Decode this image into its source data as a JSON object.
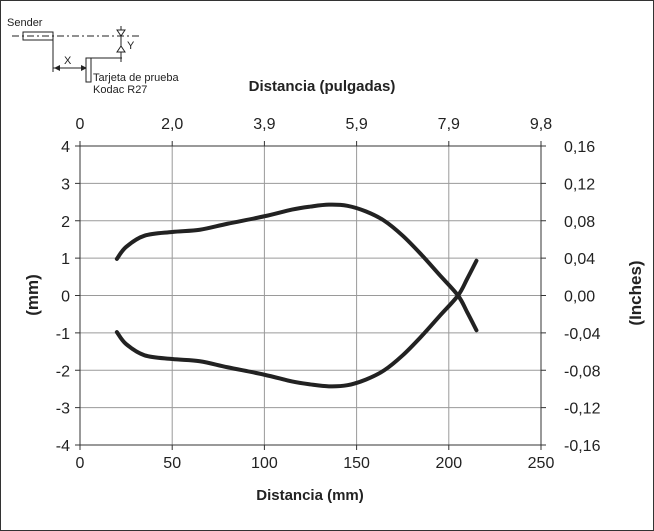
{
  "diagram": {
    "sender_label": "Sender",
    "x_label": "X",
    "y_label": "Y",
    "target_label_line1": "Tarjeta de prueba",
    "target_label_line2": "Kodac R27"
  },
  "chart_data": {
    "type": "line",
    "title": "",
    "xlabel": "Distancia (mm)",
    "ylabel": "(mm)",
    "x2label": "Distancia (pulgadas)",
    "y2label": "(Inches)",
    "xlim": [
      0,
      250
    ],
    "ylim": [
      -4,
      4
    ],
    "x_ticks": [
      0,
      50,
      100,
      150,
      200,
      250
    ],
    "x_tick_labels": [
      "0",
      "50",
      "100",
      "150",
      "200",
      "250"
    ],
    "y_ticks": [
      -4,
      -3,
      -2,
      -1,
      0,
      1,
      2,
      3,
      4
    ],
    "y_tick_labels": [
      "-4",
      "-3",
      "-2",
      "-1",
      "0",
      "1",
      "2",
      "3",
      "4"
    ],
    "x2_tick_labels": [
      "0",
      "2,0",
      "3,9",
      "5,9",
      "7,9",
      "9,8"
    ],
    "y2_tick_labels": [
      "-0,16",
      "-0,12",
      "-0,08",
      "-0,04",
      "0,00",
      "0,04",
      "0,08",
      "0,12",
      "0,16"
    ],
    "grid": true,
    "line_color": "#222222",
    "series": [
      {
        "points": [
          [
            20,
            0.98
          ],
          [
            25,
            1.3
          ],
          [
            35,
            1.6
          ],
          [
            50,
            1.7
          ],
          [
            65,
            1.76
          ],
          [
            80,
            1.92
          ],
          [
            100,
            2.12
          ],
          [
            115,
            2.3
          ],
          [
            125,
            2.38
          ],
          [
            135,
            2.43
          ],
          [
            145,
            2.4
          ],
          [
            155,
            2.25
          ],
          [
            165,
            2.0
          ],
          [
            175,
            1.6
          ],
          [
            185,
            1.1
          ],
          [
            195,
            0.55
          ],
          [
            205,
            0.0
          ],
          [
            210,
            -0.45
          ],
          [
            215,
            -0.93
          ]
        ]
      },
      {
        "points": [
          [
            20,
            -0.98
          ],
          [
            25,
            -1.3
          ],
          [
            35,
            -1.6
          ],
          [
            50,
            -1.7
          ],
          [
            65,
            -1.76
          ],
          [
            80,
            -1.92
          ],
          [
            100,
            -2.12
          ],
          [
            115,
            -2.3
          ],
          [
            125,
            -2.38
          ],
          [
            135,
            -2.43
          ],
          [
            145,
            -2.4
          ],
          [
            155,
            -2.25
          ],
          [
            165,
            -2.0
          ],
          [
            175,
            -1.6
          ],
          [
            185,
            -1.1
          ],
          [
            195,
            -0.55
          ],
          [
            205,
            0.0
          ],
          [
            210,
            0.45
          ],
          [
            215,
            0.93
          ]
        ]
      }
    ]
  }
}
